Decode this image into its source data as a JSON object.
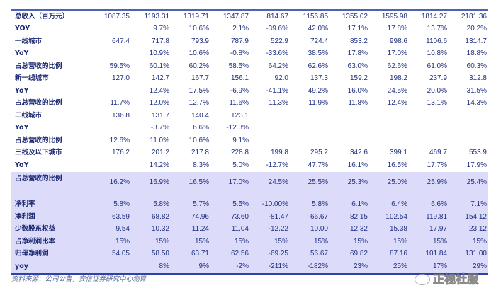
{
  "rows": [
    {
      "label": "总收入（百万元）",
      "values": [
        "1087.35",
        "1193.31",
        "1319.71",
        "1347.87",
        "814.67",
        "1156.85",
        "1355.02",
        "1595.98",
        "1814.27",
        "2181.36"
      ]
    },
    {
      "label": "YOY",
      "values": [
        "",
        "9.7%",
        "10.6%",
        "2.1%",
        "-39.6%",
        "42.0%",
        "17.1%",
        "17.8%",
        "13.7%",
        "20.2%"
      ]
    },
    {
      "label": "一线城市",
      "values": [
        "647.4",
        "717.8",
        "793.9",
        "787.9",
        "522.9",
        "724.4",
        "853.2",
        "998.6",
        "1106.6",
        "1314.7"
      ]
    },
    {
      "label": "YoY",
      "values": [
        "",
        "10.9%",
        "10.6%",
        "-0.8%",
        "-33.6%",
        "38.5%",
        "17.8%",
        "17.0%",
        "10.8%",
        "18.8%"
      ]
    },
    {
      "label": "占总营收的比例",
      "values": [
        "59.5%",
        "60.1%",
        "60.2%",
        "58.5%",
        "64.2%",
        "62.6%",
        "63.0%",
        "62.6%",
        "61.0%",
        "60.3%"
      ]
    },
    {
      "label": "新一线城市",
      "values": [
        "127.0",
        "142.7",
        "167.7",
        "156.1",
        "92.0",
        "137.3",
        "159.2",
        "198.2",
        "237.9",
        "312.8"
      ]
    },
    {
      "label": "YoY",
      "values": [
        "",
        "12.4%",
        "17.5%",
        "-6.9%",
        "-41.1%",
        "49.2%",
        "16.0%",
        "24.5%",
        "20.0%",
        "31.5%"
      ]
    },
    {
      "label": "占总营收的比例",
      "values": [
        "11.7%",
        "12.0%",
        "12.7%",
        "11.6%",
        "11.3%",
        "11.9%",
        "11.8%",
        "12.4%",
        "13.1%",
        "14.3%"
      ]
    },
    {
      "label": "二线城市",
      "values": [
        "136.8",
        "131.7",
        "140.4",
        "123.1",
        "",
        "",
        "",
        "",
        "",
        ""
      ]
    },
    {
      "label": "YoY",
      "values": [
        "",
        "-3.7%",
        "6.6%",
        "-12.3%",
        "",
        "",
        "",
        "",
        "",
        ""
      ]
    },
    {
      "label": "占总营收的比例",
      "values": [
        "12.6%",
        "11.0%",
        "10.6%",
        "9.1%",
        "",
        "",
        "",
        "",
        "",
        ""
      ]
    },
    {
      "label": "三线及以下城市",
      "values": [
        "176.2",
        "201.2",
        "217.8",
        "228.8",
        "199.8",
        "295.2",
        "342.6",
        "399.1",
        "469.7",
        "553.9"
      ]
    },
    {
      "label": "YoY",
      "values": [
        "",
        "14.2%",
        "8.3%",
        "5.0%",
        "-12.7%",
        "47.7%",
        "16.1%",
        "16.5%",
        "17.7%",
        "17.9%"
      ]
    },
    {
      "label": "占总营收的比例",
      "values": [
        "16.2%",
        "16.9%",
        "16.5%",
        "17.0%",
        "24.5%",
        "25.5%",
        "25.3%",
        "25.0%",
        "25.9%",
        "25.4%"
      ]
    },
    {
      "label": "净利率",
      "values": [
        "5.8%",
        "5.8%",
        "5.7%",
        "5.5%",
        "-10.00%",
        "5.8%",
        "6.1%",
        "6.4%",
        "6.6%",
        "7.1%"
      ]
    },
    {
      "label": "净利润",
      "values": [
        "63.59",
        "68.82",
        "74.96",
        "73.60",
        "-81.47",
        "66.67",
        "82.15",
        "102.54",
        "119.81",
        "154.12"
      ]
    },
    {
      "label": "少数股东权益",
      "values": [
        "9.54",
        "10.32",
        "11.24",
        "11.04",
        "-12.22",
        "10.00",
        "12.32",
        "15.38",
        "17.97",
        "23.12"
      ]
    },
    {
      "label": "占净利润比率",
      "values": [
        "15%",
        "15%",
        "15%",
        "15%",
        "15%",
        "15%",
        "15%",
        "15%",
        "15%",
        "15%"
      ]
    },
    {
      "label": "归母净利润",
      "values": [
        "54.05",
        "58.50",
        "63.71",
        "62.56",
        "-69.25",
        "56.67",
        "69.82",
        "87.16",
        "101.84",
        "131.00"
      ]
    },
    {
      "label": "yoy",
      "values": [
        "",
        "8%",
        "9%",
        "-2%",
        "-211%",
        "-182%",
        "23%",
        "25%",
        "17%",
        "29%"
      ]
    }
  ],
  "source": "资料来源：公司公告，安信证券研究中心测算",
  "watermark": "正视社服",
  "colors": {
    "text": "#1f2f80",
    "shade": "#dcdcfa",
    "rule": "#2c44a8"
  }
}
